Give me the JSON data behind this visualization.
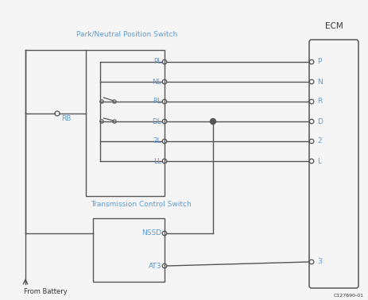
{
  "title_pnps": "Park/Neutral Position Switch",
  "title_ecm": "ECM",
  "title_tcs": "Transmission Control Switch",
  "label_from_battery": "From Battery",
  "label_image_id": "C127690-01",
  "pin_labels_left": [
    "PL",
    "NL",
    "RL",
    "DL",
    "2L",
    "LL"
  ],
  "pin_labels_ecm": [
    "P",
    "N",
    "R",
    "D",
    "2",
    "L",
    "3"
  ],
  "switch_labels": [
    "NSSD",
    "AT3"
  ],
  "bg_color": "#f5f5f5",
  "line_color": "#555555",
  "text_color_blue": "#5b9bd5",
  "text_color_dark": "#333333"
}
